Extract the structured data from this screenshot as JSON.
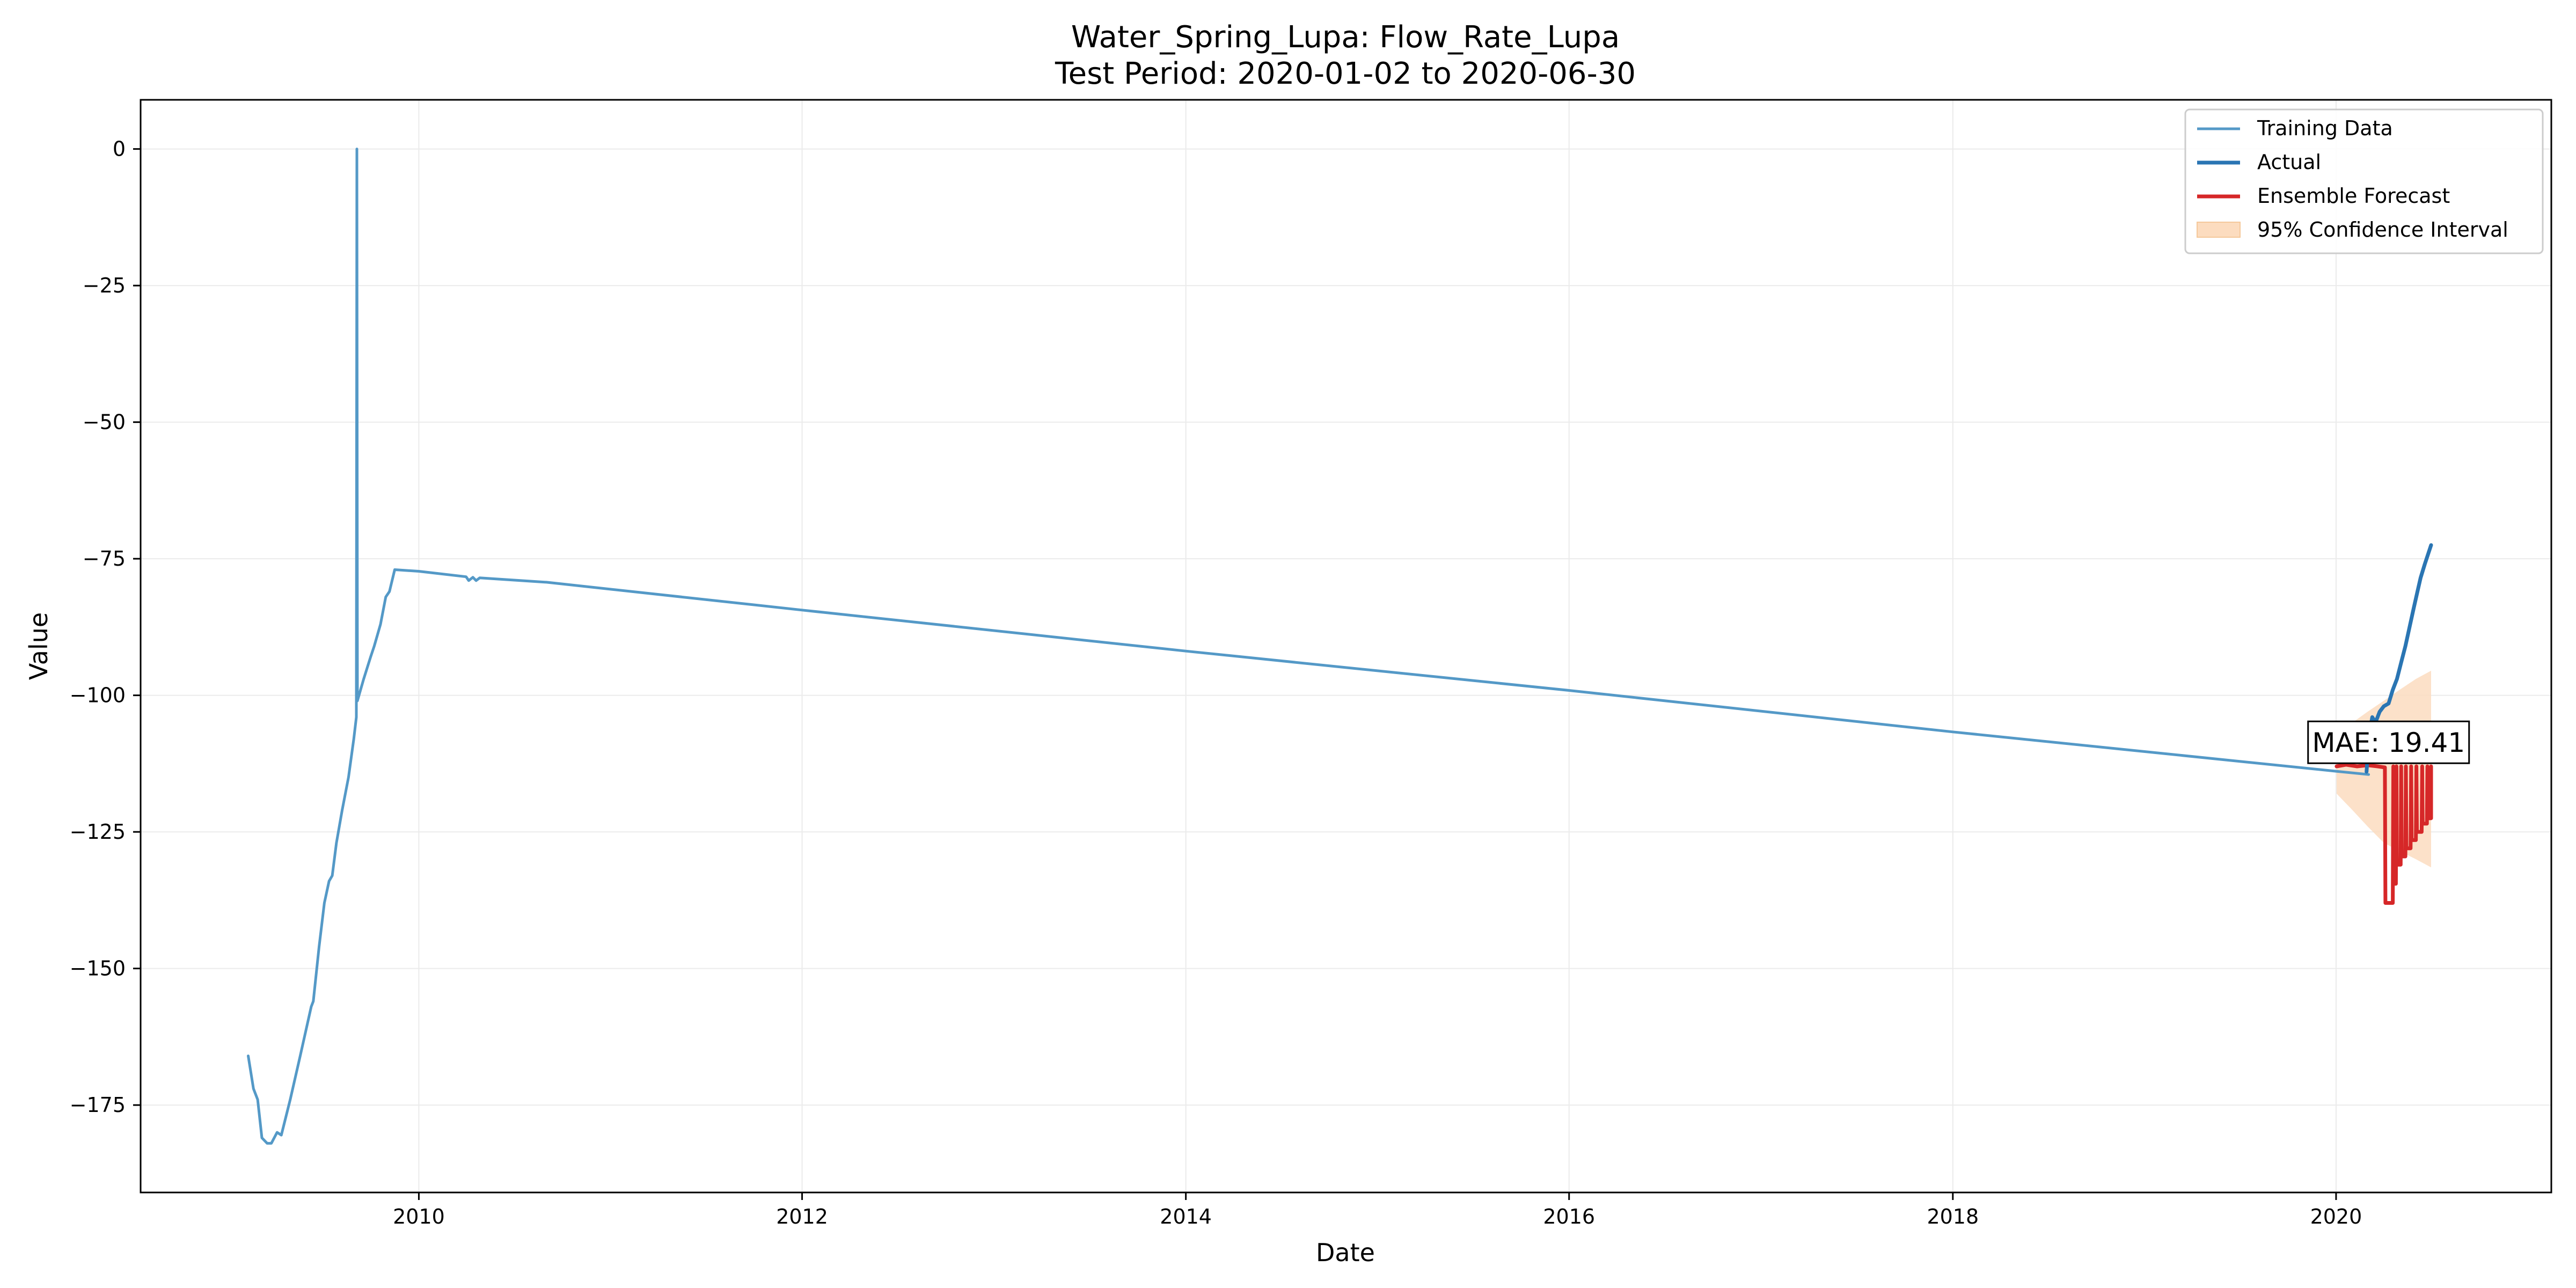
{
  "chart_data": {
    "type": "line",
    "title": [
      "Water_Spring_Lupa: Flow_Rate_Lupa",
      "Test Period: 2020-01-02 to 2020-06-30"
    ],
    "xlabel": "Date",
    "ylabel": "Value",
    "xlim": [
      "2008-07-20",
      "2021-02-14"
    ],
    "ylim": [
      -191,
      9
    ],
    "x_ticks": [
      {
        "value": "2010-01-01",
        "label": "2010"
      },
      {
        "value": "2012-01-01",
        "label": "2012"
      },
      {
        "value": "2014-01-01",
        "label": "2014"
      },
      {
        "value": "2016-01-01",
        "label": "2016"
      },
      {
        "value": "2018-01-01",
        "label": "2018"
      },
      {
        "value": "2020-01-01",
        "label": "2020"
      }
    ],
    "y_ticks": [
      {
        "value": 0,
        "label": "0"
      },
      {
        "value": -25,
        "label": "−25"
      },
      {
        "value": -50,
        "label": "−50"
      },
      {
        "value": -75,
        "label": "−75"
      },
      {
        "value": -100,
        "label": "−100"
      },
      {
        "value": -125,
        "label": "−125"
      },
      {
        "value": -150,
        "label": "−150"
      },
      {
        "value": -175,
        "label": "−175"
      }
    ],
    "grid": true,
    "legend_position": "top-right",
    "series": [
      {
        "name": "Training Data",
        "kind": "line",
        "color": "#5499c7",
        "points": [
          [
            "2009-02-10",
            -166
          ],
          [
            "2009-02-20",
            -172
          ],
          [
            "2009-02-28",
            -174
          ],
          [
            "2009-03-08",
            -181
          ],
          [
            "2009-03-18",
            -182
          ],
          [
            "2009-03-26",
            -182
          ],
          [
            "2009-04-06",
            -180
          ],
          [
            "2009-04-14",
            -180.5
          ],
          [
            "2009-05-01",
            -174
          ],
          [
            "2009-05-20",
            -166
          ],
          [
            "2009-06-10",
            -157
          ],
          [
            "2009-06-14",
            -156
          ],
          [
            "2009-06-25",
            -146
          ],
          [
            "2009-07-05",
            -138
          ],
          [
            "2009-07-14",
            -134
          ],
          [
            "2009-07-20",
            -133
          ],
          [
            "2009-07-28",
            -127
          ],
          [
            "2009-08-08",
            -121
          ],
          [
            "2009-08-20",
            -115
          ],
          [
            "2009-08-30",
            -108
          ],
          [
            "2009-09-04",
            -104
          ],
          [
            "2009-09-05",
            0
          ],
          [
            "2009-09-06",
            -101
          ],
          [
            "2009-09-18",
            -97
          ],
          [
            "2009-10-01",
            -93
          ],
          [
            "2009-10-08",
            -91
          ],
          [
            "2009-10-20",
            -87
          ],
          [
            "2009-10-30",
            -82
          ],
          [
            "2009-11-06",
            -81
          ],
          [
            "2009-11-16",
            -77
          ],
          [
            "2010-01-01",
            -77.3
          ],
          [
            "2010-04-01",
            -78.3
          ],
          [
            "2010-04-06",
            -79
          ],
          [
            "2010-04-14",
            -78.4
          ],
          [
            "2010-04-20",
            -79
          ],
          [
            "2010-04-27",
            -78.5
          ],
          [
            "2010-09-01",
            -79.3
          ],
          [
            "2012-01-01",
            -84.4
          ],
          [
            "2014-01-01",
            -91.9
          ],
          [
            "2016-01-01",
            -99.1
          ],
          [
            "2018-01-01",
            -106.7
          ],
          [
            "2020-01-01",
            -113.9
          ],
          [
            "2020-03-03",
            -114.5
          ]
        ]
      },
      {
        "name": "Actual",
        "kind": "line",
        "color": "#2a75b3",
        "points": [
          [
            "2020-02-28",
            -114
          ],
          [
            "2020-03-04",
            -107
          ],
          [
            "2020-03-10",
            -104
          ],
          [
            "2020-03-16",
            -105
          ],
          [
            "2020-03-24",
            -103
          ],
          [
            "2020-04-01",
            -102
          ],
          [
            "2020-04-10",
            -101.5
          ],
          [
            "2020-04-18",
            -99
          ],
          [
            "2020-04-26",
            -97
          ],
          [
            "2020-05-04",
            -94
          ],
          [
            "2020-05-12",
            -91
          ],
          [
            "2020-05-20",
            -87.5
          ],
          [
            "2020-05-28",
            -84
          ],
          [
            "2020-06-04",
            -81
          ],
          [
            "2020-06-10",
            -78.5
          ],
          [
            "2020-06-18",
            -76
          ],
          [
            "2020-06-30",
            -72.5
          ]
        ]
      },
      {
        "name": "Ensemble Forecast",
        "kind": "line",
        "color": "#d62728",
        "points": [
          [
            "2020-01-02",
            -113
          ],
          [
            "2020-01-20",
            -112.7
          ],
          [
            "2020-02-10",
            -113
          ],
          [
            "2020-03-01",
            -112.8
          ],
          [
            "2020-03-20",
            -113
          ],
          [
            "2020-04-03",
            -113.2
          ],
          [
            "2020-04-04",
            -138
          ],
          [
            "2020-04-18",
            -138
          ],
          [
            "2020-04-19",
            -113
          ],
          [
            "2020-04-20",
            -134.5
          ],
          [
            "2020-04-24",
            -134.5
          ],
          [
            "2020-04-25",
            -113
          ],
          [
            "2020-04-26",
            -131
          ],
          [
            "2020-05-03",
            -131
          ],
          [
            "2020-05-04",
            -113
          ],
          [
            "2020-05-05",
            -129.5
          ],
          [
            "2020-05-12",
            -129.5
          ],
          [
            "2020-05-13",
            -113
          ],
          [
            "2020-05-14",
            -128
          ],
          [
            "2020-05-22",
            -128
          ],
          [
            "2020-05-23",
            -113
          ],
          [
            "2020-05-24",
            -126.5
          ],
          [
            "2020-06-01",
            -126.5
          ],
          [
            "2020-06-02",
            -113
          ],
          [
            "2020-06-03",
            -125
          ],
          [
            "2020-06-12",
            -125
          ],
          [
            "2020-06-13",
            -113
          ],
          [
            "2020-06-14",
            -123.5
          ],
          [
            "2020-06-22",
            -123.5
          ],
          [
            "2020-06-23",
            -113
          ],
          [
            "2020-06-24",
            -122.5
          ],
          [
            "2020-06-30",
            -122.5
          ],
          [
            "2020-06-30",
            -113
          ]
        ]
      },
      {
        "name": "95% Confidence Interval",
        "kind": "band",
        "color": "#fcdcbf",
        "x": [
          "2020-01-02",
          "2020-02-01",
          "2020-03-01",
          "2020-04-01",
          "2020-05-01",
          "2020-06-01",
          "2020-06-30"
        ],
        "lower": [
          -118,
          -121,
          -124,
          -127,
          -128.5,
          -130,
          -131.5
        ],
        "upper": [
          -108,
          -105,
          -103,
          -101,
          -99,
          -97,
          -95.5
        ]
      }
    ],
    "annotation": {
      "text": "MAE: 19.41",
      "x": "2020-04-10",
      "y": -108.7
    }
  }
}
